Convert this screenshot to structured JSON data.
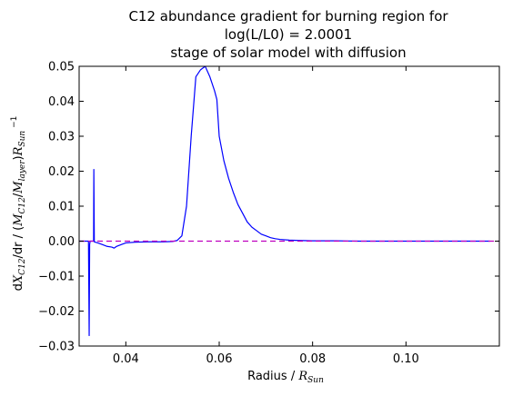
{
  "chart_data": {
    "type": "line",
    "title_lines": [
      "C12 abundance gradient for burning region for",
      "log(L/L0) = 2.0001",
      "stage of solar model with diffusion"
    ],
    "xlabel": "Radius / R_Sun",
    "ylabel": "dX_C12/dr / (M_C12/M_layer) R_Sun^-1",
    "xlim": [
      0.03,
      0.12
    ],
    "ylim": [
      -0.03,
      0.05
    ],
    "xticks": [
      0.04,
      0.06,
      0.08,
      0.1
    ],
    "xtick_labels": [
      "0.04",
      "0.06",
      "0.08",
      "0.10"
    ],
    "yticks": [
      -0.03,
      -0.02,
      -0.01,
      0.0,
      0.01,
      0.02,
      0.03,
      0.04,
      0.05
    ],
    "ytick_labels": [
      "−0.03",
      "−0.02",
      "−0.01",
      "0.00",
      "0.01",
      "0.02",
      "0.03",
      "0.04",
      "0.05"
    ],
    "grid": false,
    "colors": {
      "series": "#0000ff",
      "reference": "#bf00bf"
    },
    "series": [
      {
        "x": [
          0.03,
          0.0315,
          0.032,
          0.03215,
          0.03225,
          0.03235,
          0.0325,
          0.0328,
          0.0331,
          0.03315,
          0.03325,
          0.0335,
          0.034,
          0.035,
          0.036,
          0.037,
          0.0375,
          0.038,
          0.039,
          0.04,
          0.042,
          0.045,
          0.048,
          0.05,
          0.051,
          0.052,
          0.053,
          0.054,
          0.055,
          0.056,
          0.057,
          0.058,
          0.059,
          0.0595,
          0.06,
          0.061,
          0.062,
          0.063,
          0.064,
          0.065,
          0.066,
          0.067,
          0.068,
          0.069,
          0.07,
          0.071,
          0.072,
          0.073,
          0.075,
          0.077,
          0.08,
          0.085,
          0.09,
          0.1,
          0.11,
          0.118
        ],
        "y": [
          0.0,
          0.0,
          0.0,
          -0.027,
          -0.001,
          0.0,
          0.0,
          0.0,
          0.0,
          0.0205,
          -0.0002,
          -0.0003,
          -0.0005,
          -0.001,
          -0.0015,
          -0.0017,
          -0.002,
          -0.0015,
          -0.001,
          -0.0005,
          -0.0003,
          -0.0002,
          -0.0002,
          -0.0001,
          0.0002,
          0.0015,
          0.01,
          0.03,
          0.047,
          0.049,
          0.05,
          0.047,
          0.043,
          0.0405,
          0.03,
          0.023,
          0.018,
          0.014,
          0.0105,
          0.008,
          0.0055,
          0.004,
          0.003,
          0.002,
          0.0015,
          0.001,
          0.0007,
          0.0005,
          0.0003,
          0.0002,
          0.0001,
          0.0001,
          0.0,
          0.0,
          0.0,
          0.0
        ]
      },
      {
        "x": [
          0.03,
          0.12
        ],
        "y": [
          0.0,
          0.0
        ],
        "style": "dashed"
      }
    ]
  }
}
